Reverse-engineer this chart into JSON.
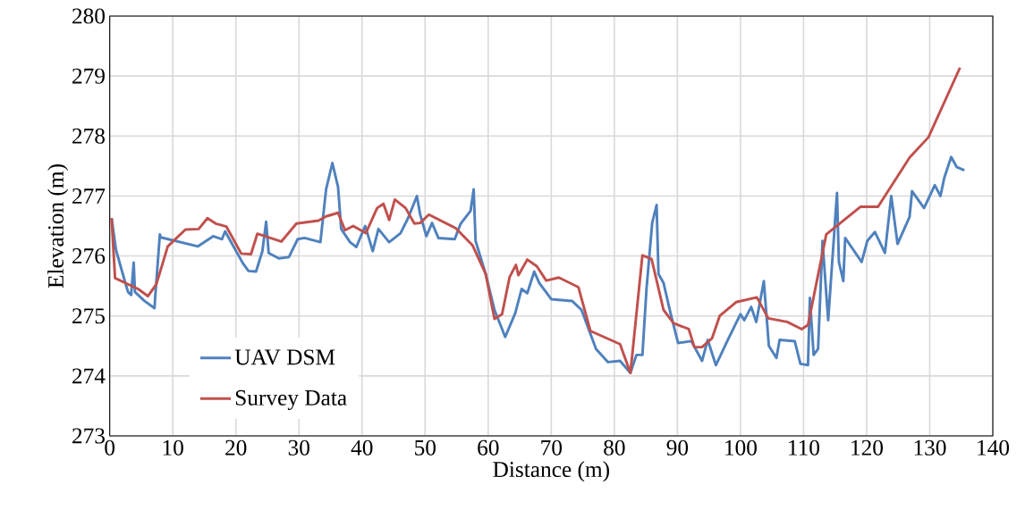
{
  "chart_data": {
    "type": "line",
    "xlabel": "Distance (m)",
    "ylabel": "Elevation (m)",
    "xlim": [
      0,
      140
    ],
    "ylim": [
      273,
      280
    ],
    "xticks": [
      0,
      10,
      20,
      30,
      40,
      50,
      60,
      70,
      80,
      90,
      100,
      110,
      120,
      130,
      140
    ],
    "yticks": [
      273,
      274,
      275,
      276,
      277,
      278,
      279,
      280
    ],
    "grid": true,
    "legend": "bottom left",
    "marker": "none",
    "line_style": "solid",
    "series": [
      {
        "name": "UAV DSM",
        "color": "#4f81bd",
        "x": [
          0.3,
          1.0,
          1.8,
          2.9,
          3.4,
          3.8,
          4.0,
          5.5,
          7.1,
          7.2,
          7.95,
          8.1,
          14.0,
          16.4,
          17.8,
          18.3,
          19.2,
          21.1,
          22.0,
          23.2,
          24.2,
          24.8,
          25.2,
          26.8,
          28.4,
          29.8,
          30.9,
          33.4,
          34.3,
          35.3,
          36.2,
          36.7,
          38.1,
          39.1,
          40.5,
          41.7,
          42.6,
          44.3,
          46.1,
          47.3,
          48.7,
          49.2,
          50.2,
          51.1,
          52.1,
          54.7,
          55.6,
          57.2,
          57.7,
          58.0,
          59.6,
          61.0,
          62.7,
          64.3,
          65.3,
          66.2,
          67.3,
          68.1,
          70.0,
          73.3,
          74.8,
          77.1,
          79.0,
          80.9,
          82.55,
          83.5,
          84.45,
          85.1,
          86.0,
          86.7,
          87.0,
          87.8,
          88.9,
          90.1,
          92.2,
          93.9,
          94.8,
          96.1,
          97.9,
          100.0,
          100.6,
          101.7,
          102.5,
          103.7,
          104.5,
          105.7,
          106.2,
          108.6,
          109.5,
          110.7,
          111.0,
          111.6,
          112.3,
          113.0,
          113.9,
          115.3,
          115.6,
          116.3,
          116.6,
          119.2,
          120.1,
          121.3,
          122.9,
          123.9,
          124.9,
          126.8,
          127.2,
          129.1,
          130.8,
          131.7,
          132.3,
          133.4,
          134.3,
          135.5
        ],
        "values": [
          276.63,
          276.1,
          275.8,
          275.4,
          275.35,
          275.89,
          275.4,
          275.25,
          275.13,
          275.3,
          276.36,
          276.31,
          276.16,
          276.33,
          276.28,
          276.41,
          276.24,
          275.88,
          275.75,
          275.74,
          276.08,
          276.57,
          276.05,
          275.96,
          275.98,
          276.28,
          276.3,
          276.23,
          277.11,
          277.55,
          277.15,
          276.45,
          276.23,
          276.15,
          276.5,
          276.08,
          276.45,
          276.23,
          276.38,
          276.63,
          277.0,
          276.7,
          276.33,
          276.55,
          276.3,
          276.28,
          276.53,
          276.75,
          277.11,
          276.25,
          275.7,
          275.1,
          274.65,
          275.05,
          275.45,
          275.38,
          275.74,
          275.55,
          275.28,
          275.25,
          275.1,
          274.45,
          274.23,
          274.25,
          274.05,
          274.35,
          274.35,
          275.45,
          276.55,
          276.85,
          275.7,
          275.55,
          275.05,
          274.55,
          274.58,
          274.25,
          274.6,
          274.18,
          274.58,
          275.03,
          274.93,
          275.15,
          274.9,
          275.58,
          274.5,
          274.3,
          274.6,
          274.58,
          274.2,
          274.18,
          275.3,
          274.35,
          274.45,
          276.25,
          274.93,
          277.05,
          275.9,
          275.58,
          276.3,
          275.9,
          276.25,
          276.4,
          276.05,
          277.0,
          276.2,
          276.65,
          277.08,
          276.8,
          277.18,
          277.0,
          277.3,
          277.65,
          277.48,
          277.43
        ]
      },
      {
        "name": "Survey Data",
        "color": "#c0504d",
        "x": [
          0.3,
          0.85,
          4.5,
          6.05,
          7.4,
          9.2,
          12.0,
          14.1,
          15.5,
          16.8,
          18.5,
          20.85,
          22.4,
          23.4,
          27.2,
          29.6,
          33.1,
          34.3,
          36.2,
          37.3,
          38.6,
          40.6,
          42.4,
          43.4,
          44.3,
          45.2,
          46.9,
          48.3,
          49.2,
          50.6,
          54.9,
          57.5,
          59.6,
          61.0,
          62.2,
          63.4,
          64.4,
          64.8,
          66.2,
          67.7,
          69.2,
          71.2,
          74.3,
          76.2,
          80.9,
          82.55,
          84.45,
          85.9,
          87.8,
          89.4,
          91.8,
          92.7,
          93.9,
          95.5,
          96.7,
          99.3,
          102.6,
          104.4,
          107.4,
          109.7,
          110.7,
          113.6,
          119.0,
          121.8,
          126.8,
          129.8,
          134.8
        ],
        "values": [
          276.63,
          275.63,
          275.45,
          275.33,
          275.53,
          276.16,
          276.44,
          276.45,
          276.63,
          276.54,
          276.49,
          276.04,
          276.03,
          276.37,
          276.24,
          276.54,
          276.59,
          276.66,
          276.72,
          276.43,
          276.5,
          276.38,
          276.8,
          276.87,
          276.6,
          276.94,
          276.8,
          276.54,
          276.55,
          276.69,
          276.46,
          276.18,
          275.7,
          274.95,
          275.03,
          275.65,
          275.85,
          275.68,
          275.94,
          275.83,
          275.59,
          275.64,
          275.48,
          274.75,
          274.53,
          274.05,
          276.01,
          275.95,
          275.1,
          274.88,
          274.78,
          274.48,
          274.48,
          274.63,
          275.0,
          275.23,
          275.31,
          274.96,
          274.9,
          274.78,
          274.85,
          276.36,
          276.82,
          276.82,
          277.64,
          277.98,
          279.14
        ]
      }
    ]
  }
}
